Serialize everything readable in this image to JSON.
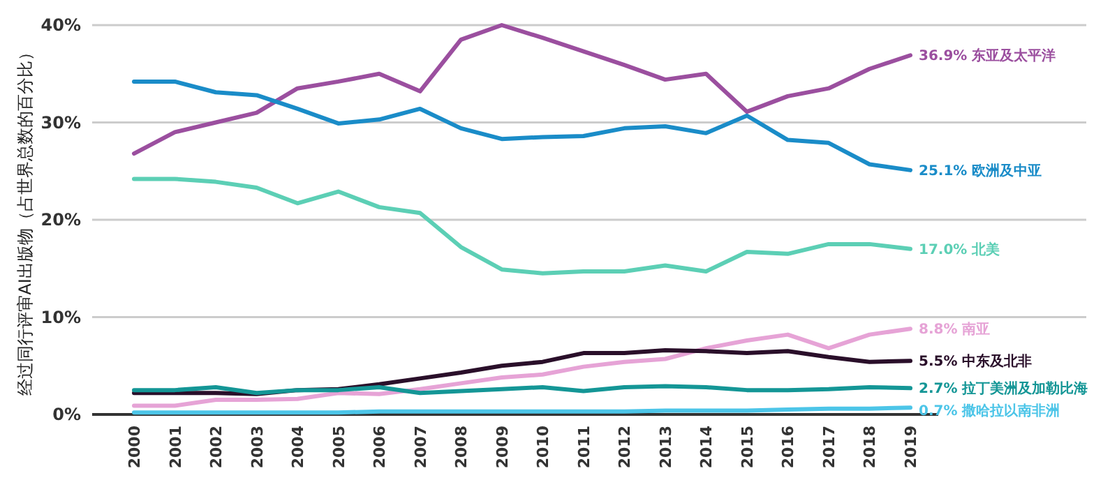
{
  "chart_data": {
    "type": "line",
    "ylabel": "经过同行评审AI出版物（占世界总数的百分比）",
    "categories": [
      "2000",
      "2001",
      "2002",
      "2003",
      "2004",
      "2005",
      "2006",
      "2007",
      "2008",
      "2009",
      "2010",
      "2011",
      "2012",
      "2013",
      "2014",
      "2015",
      "2016",
      "2017",
      "2018",
      "2019"
    ],
    "ylim": [
      0,
      40
    ],
    "yticks": [
      {
        "value": 0,
        "label": "0%"
      },
      {
        "value": 10,
        "label": "10%"
      },
      {
        "value": 20,
        "label": "20%"
      },
      {
        "value": 30,
        "label": "30%"
      },
      {
        "value": 40,
        "label": "40%"
      }
    ],
    "grid": "y",
    "marker": "none",
    "line_style": "solid",
    "series": [
      {
        "name": "东亚及太平洋",
        "color": "#9b4f9f",
        "values": [
          26.8,
          29.0,
          30.0,
          31.0,
          33.5,
          34.2,
          35.0,
          33.2,
          38.5,
          40.0,
          38.7,
          37.3,
          35.9,
          34.4,
          35.0,
          31.1,
          32.7,
          33.5,
          35.5,
          36.9
        ],
        "value_labels": [
          null,
          null,
          null,
          null,
          null,
          null,
          null,
          null,
          null,
          null,
          null,
          null,
          null,
          null,
          null,
          null,
          null,
          null,
          null,
          "36.9%"
        ]
      },
      {
        "name": "欧洲及中亚",
        "color": "#1a8cc8",
        "values": [
          34.2,
          34.2,
          33.1,
          32.8,
          31.4,
          29.9,
          30.3,
          31.4,
          29.4,
          28.3,
          28.5,
          28.6,
          29.4,
          29.6,
          28.9,
          30.7,
          28.2,
          27.9,
          25.7,
          25.1
        ],
        "value_labels": [
          null,
          null,
          null,
          null,
          null,
          null,
          null,
          null,
          null,
          null,
          null,
          null,
          null,
          null,
          null,
          null,
          null,
          null,
          null,
          "25.1%"
        ]
      },
      {
        "name": "北美",
        "color": "#5ccfb5",
        "values": [
          24.2,
          24.2,
          23.9,
          23.3,
          21.7,
          22.9,
          21.3,
          20.7,
          17.2,
          14.9,
          14.5,
          14.7,
          14.7,
          15.3,
          14.7,
          16.7,
          16.5,
          17.5,
          17.5,
          17.0
        ],
        "value_labels": [
          null,
          null,
          null,
          null,
          null,
          null,
          null,
          null,
          null,
          null,
          null,
          null,
          null,
          null,
          null,
          null,
          null,
          null,
          null,
          "17.0%"
        ]
      },
      {
        "name": "南亚",
        "color": "#e6a3d6",
        "values": [
          0.9,
          0.9,
          1.5,
          1.5,
          1.6,
          2.2,
          2.1,
          2.6,
          3.2,
          3.8,
          4.1,
          4.9,
          5.4,
          5.7,
          6.8,
          7.6,
          8.2,
          6.8,
          8.2,
          8.8
        ],
        "value_labels": [
          null,
          null,
          null,
          null,
          null,
          null,
          null,
          null,
          null,
          null,
          null,
          null,
          null,
          null,
          null,
          null,
          null,
          null,
          null,
          "8.8%"
        ]
      },
      {
        "name": "中东及北非",
        "color": "#2a0f2a",
        "values": [
          2.2,
          2.2,
          2.2,
          2.1,
          2.5,
          2.6,
          3.1,
          3.7,
          4.3,
          5.0,
          5.4,
          6.3,
          6.3,
          6.6,
          6.5,
          6.3,
          6.5,
          5.9,
          5.4,
          5.5
        ],
        "value_labels": [
          null,
          null,
          null,
          null,
          null,
          null,
          null,
          null,
          null,
          null,
          null,
          null,
          null,
          null,
          null,
          null,
          null,
          null,
          null,
          "5.5%"
        ]
      },
      {
        "name": "拉丁美洲及加勒比海",
        "color": "#149696",
        "values": [
          2.5,
          2.5,
          2.8,
          2.2,
          2.5,
          2.5,
          2.8,
          2.2,
          2.4,
          2.6,
          2.8,
          2.4,
          2.8,
          2.9,
          2.8,
          2.5,
          2.5,
          2.6,
          2.8,
          2.7
        ],
        "value_labels": [
          null,
          null,
          null,
          null,
          null,
          null,
          null,
          null,
          null,
          null,
          null,
          null,
          null,
          null,
          null,
          null,
          null,
          null,
          null,
          "2.7%"
        ]
      },
      {
        "name": "撒哈拉以南非洲",
        "color": "#4cc5e8",
        "values": [
          0.2,
          0.2,
          0.2,
          0.2,
          0.2,
          0.2,
          0.3,
          0.3,
          0.3,
          0.3,
          0.3,
          0.3,
          0.3,
          0.4,
          0.4,
          0.4,
          0.5,
          0.6,
          0.6,
          0.7
        ],
        "value_labels": [
          null,
          null,
          null,
          null,
          null,
          null,
          null,
          null,
          null,
          null,
          null,
          null,
          null,
          null,
          null,
          null,
          null,
          null,
          null,
          "0.7%"
        ]
      }
    ]
  }
}
